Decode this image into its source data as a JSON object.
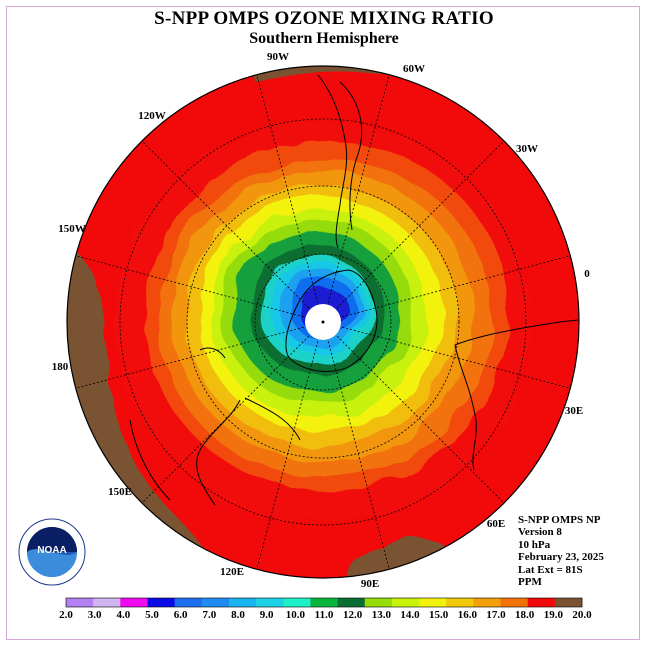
{
  "header": {
    "title": "S-NPP OMPS OZONE MIXING RATIO",
    "subtitle": "Southern Hemisphere"
  },
  "map": {
    "projection": "south-polar-stereographic",
    "longitude_labels": [
      "90W",
      "60W",
      "30W",
      "0",
      "30E",
      "60E",
      "90E",
      "120E",
      "150E",
      "180",
      "150W",
      "120W"
    ],
    "colors": {
      "ocean_ring_bands": [
        "#f20a0a",
        "#f24a0a",
        "#f2720a",
        "#f2960a",
        "#f2be0a",
        "#f2f20a",
        "#c8f20a",
        "#96dc0a",
        "#14a03c",
        "#0a6e32",
        "#1ed2c8",
        "#19c8e6",
        "#1ea0f0",
        "#0a6ef0",
        "#1e1ed2"
      ],
      "high_region": "#7a5232",
      "pole_fill": "#ffffff"
    }
  },
  "info": {
    "instrument": "S-NPP OMPS NP",
    "version": "Version 8",
    "level": "10 hPa",
    "date": "February 23, 2025",
    "lat_ext": "Lat Ext = 81S",
    "units": "PPM"
  },
  "logo": {
    "text": "NOAA"
  },
  "colorbar": {
    "ticks": [
      "2.0",
      "3.0",
      "4.0",
      "5.0",
      "6.0",
      "7.0",
      "8.0",
      "9.0",
      "10.0",
      "11.0",
      "12.0",
      "13.0",
      "14.0",
      "15.0",
      "16.0",
      "17.0",
      "18.0",
      "19.0",
      "20.0"
    ],
    "colors": [
      "#b482f0",
      "#d2b4f0",
      "#f00af0",
      "#0a0ae6",
      "#1e6ef0",
      "#1e8cf0",
      "#19b4f0",
      "#1ed2e6",
      "#1ef0c8",
      "#0ab43c",
      "#0a6e32",
      "#96dc0a",
      "#c8f20a",
      "#f2f20a",
      "#f2c80a",
      "#f2a00a",
      "#f2720a",
      "#f20a0a",
      "#7a5232"
    ]
  }
}
